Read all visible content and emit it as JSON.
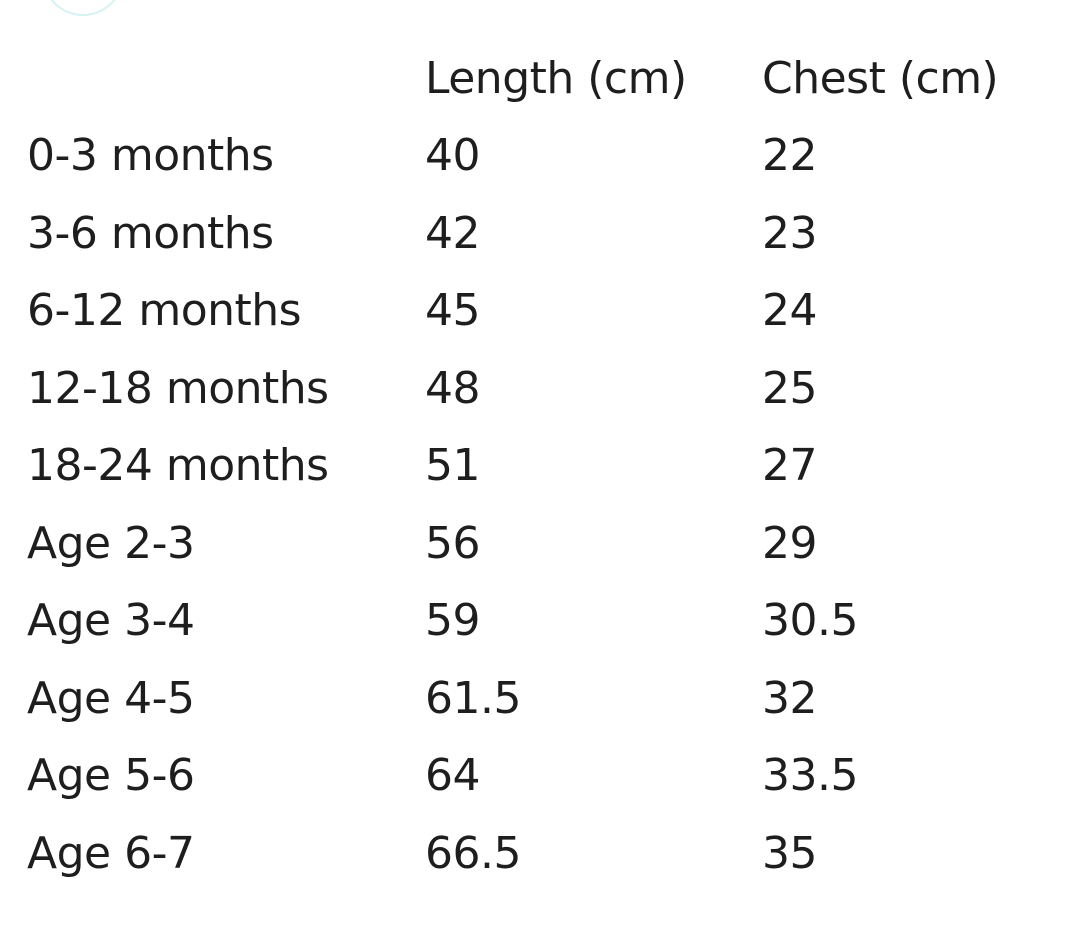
{
  "table": {
    "headers": [
      "",
      "Length (cm)",
      "Chest (cm)"
    ],
    "rows": [
      [
        "0-3 months",
        "40",
        "22"
      ],
      [
        "3-6 months",
        "42",
        "23"
      ],
      [
        "6-12 months",
        "45",
        "24"
      ],
      [
        "12-18 months",
        "48",
        "25"
      ],
      [
        "18-24 months",
        "51",
        "27"
      ],
      [
        "Age 2-3",
        "56",
        "29"
      ],
      [
        "Age 3-4",
        "59",
        "30.5"
      ],
      [
        "Age 4-5",
        "61.5",
        "32"
      ],
      [
        "Age 5-6",
        "64",
        "33.5"
      ],
      [
        "Age 6-7",
        "66.5",
        "35"
      ]
    ]
  },
  "colors": {
    "text": "#1e1e1e",
    "decor_arc": "#d6f2f3"
  }
}
